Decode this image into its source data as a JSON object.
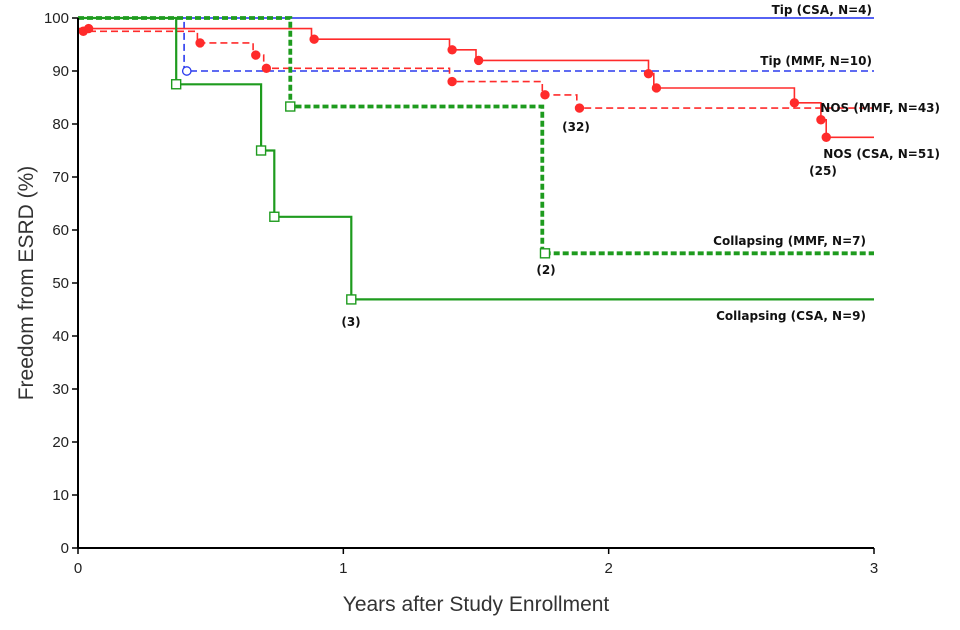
{
  "chart_data": {
    "type": "line",
    "subtype": "step",
    "title": "",
    "xlabel": "Years after Study Enrollment",
    "ylabel": "Freedom from ESRD (%)",
    "xlim": [
      0,
      3
    ],
    "ylim": [
      0,
      100
    ],
    "xticks": [
      0,
      1,
      2,
      3
    ],
    "yticks": [
      0,
      10,
      20,
      30,
      40,
      50,
      60,
      70,
      80,
      90,
      100
    ],
    "grid": false,
    "series": [
      {
        "name": "Tip (CSA, N=4)",
        "color": "#1f2ef0",
        "dash": "solid",
        "marker": "none",
        "steps": [
          [
            0,
            100
          ],
          [
            3,
            100
          ]
        ],
        "events": []
      },
      {
        "name": "Tip (MMF, N=10)",
        "color": "#2a3aee",
        "dash": "dashed",
        "marker": "open-circle",
        "steps": [
          [
            0,
            100
          ],
          [
            0.4,
            100
          ],
          [
            0.4,
            90
          ],
          [
            3,
            90
          ]
        ],
        "events": [
          [
            0.41,
            90
          ]
        ]
      },
      {
        "name": "NOS (MMF, N=43)",
        "color": "#ff2b2b",
        "dash": "dashed",
        "marker": "filled-circle",
        "steps": [
          [
            0,
            97.5
          ],
          [
            0.45,
            97.5
          ],
          [
            0.45,
            95.3
          ],
          [
            0.66,
            95.3
          ],
          [
            0.66,
            93
          ],
          [
            0.7,
            93
          ],
          [
            0.7,
            90.5
          ],
          [
            1.4,
            90.5
          ],
          [
            1.4,
            88
          ],
          [
            1.75,
            88
          ],
          [
            1.75,
            85.5
          ],
          [
            1.88,
            85.5
          ],
          [
            1.88,
            83
          ],
          [
            3,
            83
          ]
        ],
        "events": [
          [
            0.02,
            97.5
          ],
          [
            0.46,
            95.3
          ],
          [
            0.67,
            93
          ],
          [
            0.71,
            90.5
          ],
          [
            1.41,
            88
          ],
          [
            1.76,
            85.5
          ],
          [
            1.89,
            83
          ]
        ]
      },
      {
        "name": "NOS (CSA, N=51)",
        "color": "#ff2b2b",
        "dash": "solid",
        "marker": "filled-circle",
        "steps": [
          [
            0,
            98
          ],
          [
            0.88,
            98
          ],
          [
            0.88,
            96
          ],
          [
            1.4,
            96
          ],
          [
            1.4,
            94
          ],
          [
            1.5,
            94
          ],
          [
            1.5,
            92
          ],
          [
            2.15,
            92
          ],
          [
            2.15,
            89.5
          ],
          [
            2.17,
            89.5
          ],
          [
            2.17,
            86.8
          ],
          [
            2.7,
            86.8
          ],
          [
            2.7,
            84
          ],
          [
            2.8,
            84
          ],
          [
            2.8,
            80.8
          ],
          [
            2.82,
            80.8
          ],
          [
            2.82,
            77.5
          ],
          [
            3,
            77.5
          ]
        ],
        "events": [
          [
            0.04,
            98
          ],
          [
            0.89,
            96
          ],
          [
            1.41,
            94
          ],
          [
            1.51,
            92
          ],
          [
            2.15,
            89.5
          ],
          [
            2.18,
            86.8
          ],
          [
            2.7,
            84
          ],
          [
            2.8,
            80.8
          ],
          [
            2.82,
            77.5
          ]
        ]
      },
      {
        "name": "Collapsing (MMF, N=7)",
        "color": "#1e9b1e",
        "dash": "dashed-thick",
        "marker": "open-square",
        "steps": [
          [
            0,
            100
          ],
          [
            0.8,
            100
          ],
          [
            0.8,
            83.3
          ],
          [
            1.75,
            83.3
          ],
          [
            1.75,
            55.6
          ],
          [
            3,
            55.6
          ]
        ],
        "events": [
          [
            0.8,
            83.3
          ],
          [
            1.76,
            55.6
          ]
        ]
      },
      {
        "name": "Collapsing (CSA, N=9)",
        "color": "#1e9b1e",
        "dash": "solid",
        "marker": "open-square",
        "steps": [
          [
            0,
            100
          ],
          [
            0.37,
            100
          ],
          [
            0.37,
            87.5
          ],
          [
            0.69,
            87.5
          ],
          [
            0.69,
            75
          ],
          [
            0.74,
            75
          ],
          [
            0.74,
            62.5
          ],
          [
            1.03,
            62.5
          ],
          [
            1.03,
            46.9
          ],
          [
            3,
            46.9
          ]
        ],
        "events": [
          [
            0.37,
            87.5
          ],
          [
            0.69,
            75
          ],
          [
            0.74,
            62.5
          ],
          [
            1.03,
            46.9
          ]
        ]
      }
    ],
    "series_labels": [
      "Tip (CSA, N=4)",
      "Tip (MMF, N=10)",
      "NOS (MMF, N=43)",
      "NOS (CSA, N=51)",
      "Collapsing (MMF, N=7)",
      "Collapsing (CSA, N=9)"
    ],
    "annotations": [
      "(32)",
      "(25)",
      "(2)",
      "(3)"
    ]
  }
}
